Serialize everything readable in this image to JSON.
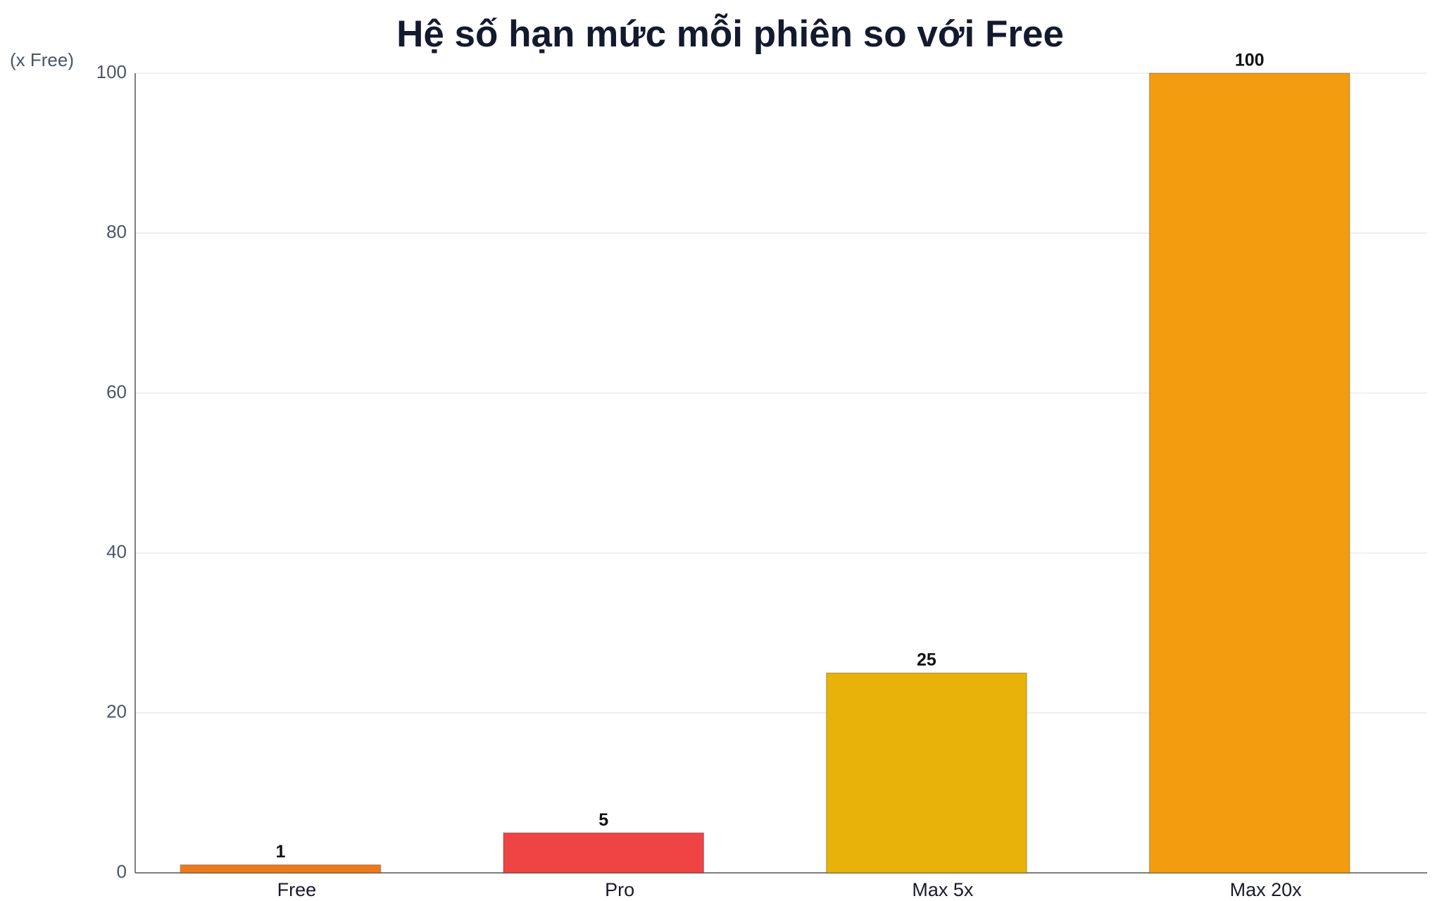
{
  "chart_data": {
    "type": "bar",
    "title": "Hệ số hạn mức mỗi phiên so với Free",
    "y_label": "(x Free)",
    "categories": [
      "Free",
      "Pro",
      "Max 5x",
      "Max 20x"
    ],
    "values": [
      1,
      5,
      25,
      100
    ],
    "colors": [
      "#ec7a1c",
      "#ef4444",
      "#e8b20a",
      "#f39c0f"
    ],
    "ylim": [
      0,
      100
    ],
    "yticks": [
      0,
      20,
      40,
      60,
      80,
      100
    ],
    "grid": true
  }
}
